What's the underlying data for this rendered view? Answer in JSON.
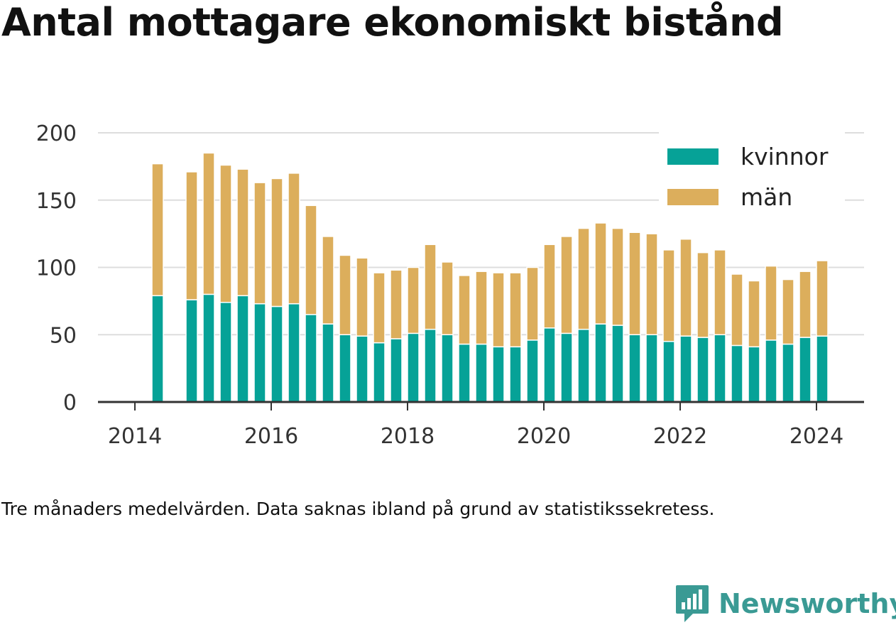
{
  "title": "Antal mottagare ekonomiskt bistånd",
  "caption": "Tre månaders medelvärden. Data saknas ibland på grund av statistikssekretess.",
  "brand": {
    "name": "Newsworthy",
    "icon": "newsworthy-logo-icon",
    "color": "#3a9a94"
  },
  "chart_data": {
    "type": "bar",
    "stacked": true,
    "x_ticks": [
      "2014",
      "2016",
      "2018",
      "2020",
      "2022",
      "2024"
    ],
    "y_ticks": [
      "0",
      "50",
      "100",
      "150",
      "200"
    ],
    "ylim": [
      0,
      200
    ],
    "grid": true,
    "legend_position": "top-right",
    "x": [
      "2014-05",
      "2014-11",
      "2015-02",
      "2015-05",
      "2015-08",
      "2015-11",
      "2016-02",
      "2016-05",
      "2016-08",
      "2016-11",
      "2017-02",
      "2017-05",
      "2017-08",
      "2017-11",
      "2018-02",
      "2018-05",
      "2018-08",
      "2018-11",
      "2019-02",
      "2019-05",
      "2019-08",
      "2019-11",
      "2020-02",
      "2020-05",
      "2020-08",
      "2020-11",
      "2021-02",
      "2021-05",
      "2021-08",
      "2021-11",
      "2022-02",
      "2022-05",
      "2022-08",
      "2022-11",
      "2023-02",
      "2023-05",
      "2023-08",
      "2023-11",
      "2024-02"
    ],
    "series": [
      {
        "name": "kvinnor",
        "color": "#06a297",
        "values": [
          79,
          76,
          80,
          74,
          79,
          73,
          71,
          73,
          65,
          58,
          50,
          49,
          44,
          47,
          51,
          54,
          50,
          43,
          43,
          41,
          41,
          46,
          55,
          51,
          54,
          58,
          57,
          50,
          50,
          45,
          49,
          48,
          50,
          42,
          41,
          46,
          43,
          48,
          49
        ]
      },
      {
        "name": "män",
        "color": "#dcae5c",
        "values": [
          98,
          95,
          105,
          102,
          94,
          90,
          95,
          97,
          81,
          65,
          59,
          58,
          52,
          51,
          49,
          63,
          54,
          51,
          54,
          55,
          55,
          54,
          62,
          72,
          75,
          75,
          72,
          76,
          75,
          68,
          72,
          63,
          63,
          53,
          49,
          55,
          48,
          49,
          56
        ]
      }
    ]
  }
}
